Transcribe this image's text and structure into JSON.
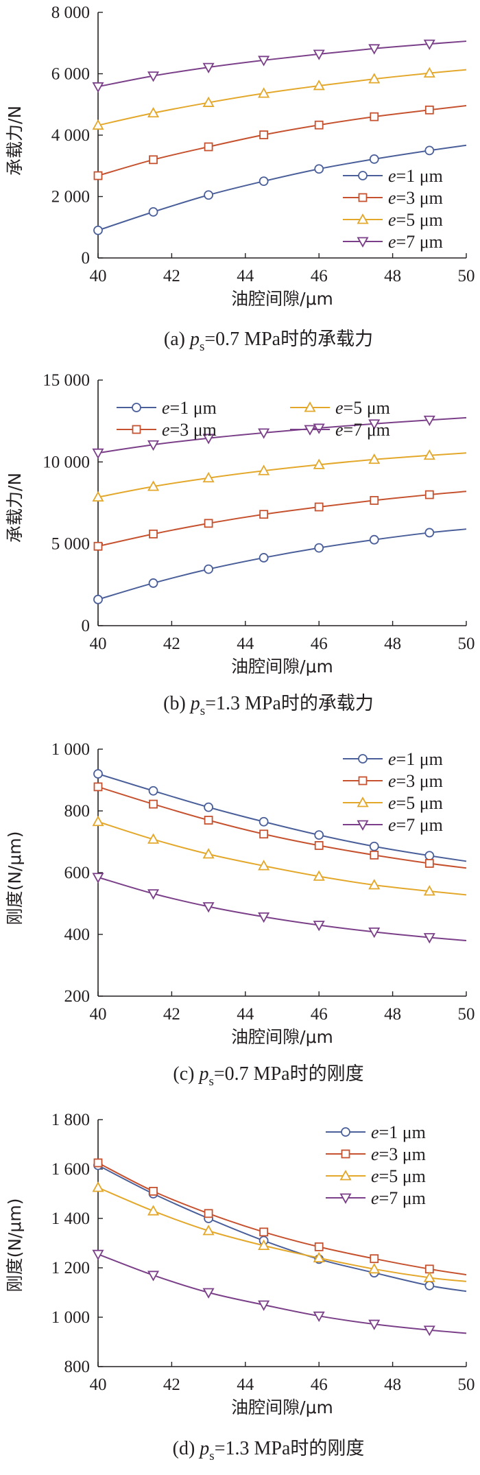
{
  "colors": [
    "#4a5f9a",
    "#c6512e",
    "#e3a72a",
    "#7a3f88"
  ],
  "xlabel": "油腔间隙/μm",
  "chart_data": [
    {
      "type": "line",
      "caption": {
        "prefix": "(a) ",
        "sym": "p",
        "sub": "s",
        "value": "=0.7 MPa",
        "zh": "时的承载力"
      },
      "ylabel": "承载力/N",
      "xlim": [
        40,
        50
      ],
      "ylim": [
        0,
        8000
      ],
      "xticks": [
        "40",
        "42",
        "44",
        "46",
        "48",
        "50"
      ],
      "yticks": [
        "0",
        "2 000",
        "4 000",
        "6 000",
        "8 000"
      ],
      "legend_layout": "column-right",
      "x": [
        40,
        41.5,
        43,
        44.5,
        46,
        47.5,
        49,
        50
      ],
      "series": [
        {
          "name": "=1 μm",
          "values": [
            900,
            1500,
            2050,
            2500,
            2900,
            3220,
            3500,
            3670
          ]
        },
        {
          "name": "=3 μm",
          "values": [
            2680,
            3200,
            3620,
            4010,
            4330,
            4600,
            4820,
            4960
          ]
        },
        {
          "name": "=5 μm",
          "values": [
            4320,
            4720,
            5060,
            5360,
            5610,
            5830,
            6020,
            6130
          ]
        },
        {
          "name": "=7 μm",
          "values": [
            5580,
            5930,
            6210,
            6440,
            6640,
            6820,
            6970,
            7060
          ]
        }
      ]
    },
    {
      "type": "line",
      "caption": {
        "prefix": "(b) ",
        "sym": "p",
        "sub": "s",
        "value": "=1.3 MPa",
        "zh": "时的承载力"
      },
      "ylabel": "承载力/N",
      "xlim": [
        40,
        50
      ],
      "ylim": [
        0,
        15000
      ],
      "xticks": [
        "40",
        "42",
        "44",
        "46",
        "48",
        "50"
      ],
      "yticks": [
        "0",
        "5 000",
        "10 000",
        "15 000"
      ],
      "legend_layout": "grid-top",
      "x": [
        40,
        41.5,
        43,
        44.5,
        46,
        47.5,
        49,
        50
      ],
      "series": [
        {
          "name": "=1 μm",
          "values": [
            1600,
            2600,
            3450,
            4150,
            4750,
            5250,
            5680,
            5900
          ]
        },
        {
          "name": "=3 μm",
          "values": [
            4850,
            5600,
            6250,
            6800,
            7250,
            7650,
            8000,
            8200
          ]
        },
        {
          "name": "=5 μm",
          "values": [
            7850,
            8500,
            9020,
            9460,
            9830,
            10150,
            10400,
            10550
          ]
        },
        {
          "name": "=7 μm",
          "values": [
            10550,
            11050,
            11450,
            11780,
            12070,
            12330,
            12560,
            12700
          ]
        }
      ]
    },
    {
      "type": "line",
      "caption": {
        "prefix": "(c) ",
        "sym": "p",
        "sub": "s",
        "value": "=0.7 MPa",
        "zh": "时的刚度"
      },
      "ylabel": "刚度(N/μm)",
      "xlim": [
        40,
        50
      ],
      "ylim": [
        200,
        1000
      ],
      "xticks": [
        "40",
        "42",
        "44",
        "46",
        "48",
        "50"
      ],
      "yticks": [
        "200",
        "400",
        "600",
        "800",
        "1 000"
      ],
      "legend_layout": "column-right",
      "x": [
        40,
        41.5,
        43,
        44.5,
        46,
        47.5,
        49,
        50
      ],
      "series": [
        {
          "name": "=1 μm",
          "values": [
            920,
            865,
            812,
            765,
            722,
            685,
            655,
            637
          ]
        },
        {
          "name": "=3 μm",
          "values": [
            878,
            822,
            770,
            725,
            688,
            657,
            630,
            615
          ]
        },
        {
          "name": "=5 μm",
          "values": [
            765,
            708,
            660,
            622,
            588,
            560,
            540,
            528
          ]
        },
        {
          "name": "=7 μm",
          "values": [
            585,
            532,
            490,
            457,
            430,
            408,
            390,
            380
          ]
        }
      ]
    },
    {
      "type": "line",
      "caption": {
        "prefix": "(d) ",
        "sym": "p",
        "sub": "s",
        "value": "=1.3 MPa",
        "zh": "时的刚度"
      },
      "ylabel": "刚度(N/μm)",
      "xlim": [
        40,
        50
      ],
      "ylim": [
        800,
        1800
      ],
      "xticks": [
        "40",
        "42",
        "44",
        "46",
        "48",
        "50"
      ],
      "yticks": [
        "800",
        "1 000",
        "1 200",
        "1 400",
        "1 600",
        "1 800"
      ],
      "legend_layout": "column-right",
      "x": [
        40,
        41.5,
        43,
        44.5,
        46,
        47.5,
        49,
        50
      ],
      "series": [
        {
          "name": "=1 μm",
          "values": [
            1615,
            1500,
            1400,
            1310,
            1235,
            1180,
            1128,
            1105
          ]
        },
        {
          "name": "=3 μm",
          "values": [
            1625,
            1510,
            1420,
            1345,
            1285,
            1237,
            1195,
            1172
          ]
        },
        {
          "name": "=5 μm",
          "values": [
            1525,
            1430,
            1350,
            1290,
            1240,
            1195,
            1160,
            1145
          ]
        },
        {
          "name": "=7 μm",
          "values": [
            1255,
            1170,
            1100,
            1050,
            1005,
            972,
            948,
            935
          ]
        }
      ]
    }
  ]
}
